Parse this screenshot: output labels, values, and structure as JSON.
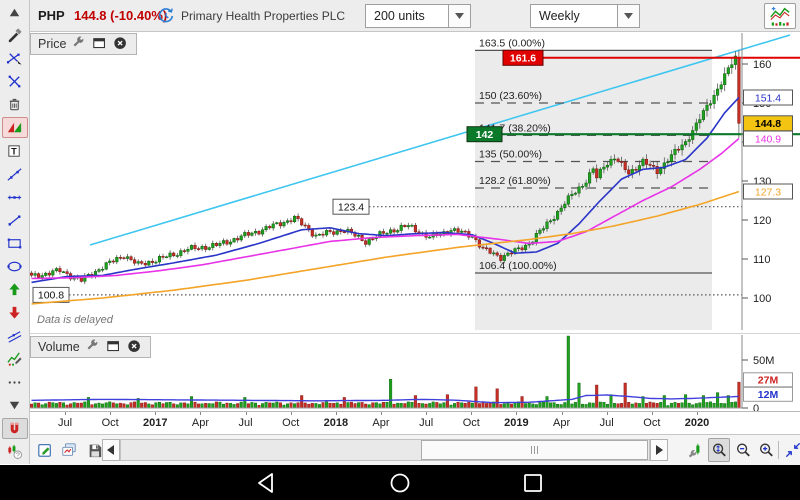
{
  "top_bar": {
    "symbol": "PHP",
    "quote": "144.8 (-10.40%)",
    "quote_color": "#c00000",
    "company": "Primary Health Properties PLC",
    "units": "200 units",
    "interval": "Weekly",
    "delayed_icon": "delayed-clock-icon",
    "chart_type_icon": "chart-style-icon"
  },
  "left_toolbar": {
    "tools": [
      {
        "name": "scroll-up"
      },
      {
        "name": "drawing-tools"
      },
      {
        "name": "trendline-draw"
      },
      {
        "name": "cross-line"
      },
      {
        "name": "delete"
      },
      {
        "name": "fib-retracement",
        "active": "red"
      },
      {
        "name": "text-tool"
      },
      {
        "name": "ray-line"
      },
      {
        "name": "horizontal-line"
      },
      {
        "name": "segment"
      },
      {
        "name": "rectangle"
      },
      {
        "name": "ellipse"
      },
      {
        "name": "arrow-up"
      },
      {
        "name": "arrow-down"
      },
      {
        "name": "channel"
      },
      {
        "name": "chart-annotation"
      },
      {
        "name": "more"
      },
      {
        "name": "scroll-down"
      },
      {
        "name": "magnet",
        "active": "gray"
      },
      {
        "name": "help-tool"
      }
    ]
  },
  "price_panel": {
    "title": "Price",
    "header_icons": [
      "wrench",
      "window",
      "close"
    ],
    "delayed_note": "Data is delayed"
  },
  "volume_panel": {
    "title": "Volume",
    "header_icons": [
      "wrench",
      "window",
      "close"
    ]
  },
  "bottom_toolbar": {
    "buttons": [
      "edit-annotations",
      "copy-chart",
      "save-chart",
      "scroll-left",
      "scroll-thumb",
      "scroll-right",
      "chart-settings",
      "zoom-area",
      "zoom-out",
      "zoom-in",
      "fit-chart"
    ],
    "active_button": "zoom-area"
  },
  "nav_bar": {
    "buttons": [
      "back",
      "home",
      "recents"
    ]
  },
  "chart_data": {
    "type": "candlestick",
    "weeks": 200,
    "colors": {
      "up": "#1fa11f",
      "up_stroke": "#0b5e0b",
      "down": "#c62f26",
      "down_stroke": "#7c150f",
      "wick": "#444"
    },
    "close_keyframes": [
      [
        0,
        105.5
      ],
      [
        8,
        107
      ],
      [
        14,
        104.5
      ],
      [
        20,
        108
      ],
      [
        26,
        111
      ],
      [
        30,
        108.5
      ],
      [
        36,
        110
      ],
      [
        44,
        112.5
      ],
      [
        52,
        113.5
      ],
      [
        60,
        116
      ],
      [
        68,
        118.5
      ],
      [
        74,
        120.5
      ],
      [
        80,
        116
      ],
      [
        88,
        117.5
      ],
      [
        94,
        114.5
      ],
      [
        100,
        117
      ],
      [
        106,
        118.5
      ],
      [
        112,
        115.5
      ],
      [
        118,
        117.5
      ],
      [
        124,
        116
      ],
      [
        127,
        112.5
      ],
      [
        132,
        110.5
      ],
      [
        136,
        112
      ],
      [
        140,
        114
      ],
      [
        144,
        118
      ],
      [
        148,
        122
      ],
      [
        152,
        126.5
      ],
      [
        156,
        130
      ],
      [
        158,
        133
      ],
      [
        159,
        130.8
      ],
      [
        161,
        134
      ],
      [
        164,
        136
      ],
      [
        168,
        132
      ],
      [
        172,
        135
      ],
      [
        176,
        132.5
      ],
      [
        180,
        136.5
      ],
      [
        184,
        140
      ],
      [
        188,
        146
      ],
      [
        192,
        152
      ],
      [
        195,
        157
      ],
      [
        198,
        161.6
      ],
      [
        199,
        161.6
      ]
    ],
    "last_candle": {
      "open": 161.6,
      "high": 163.5,
      "low": 141.0,
      "close": 144.8
    },
    "moving_averages": [
      {
        "name": "ma-fast",
        "color": "#2a35c8",
        "end_value": 151.4,
        "keyframes": [
          [
            0,
            104
          ],
          [
            10,
            105.5
          ],
          [
            20,
            105.8
          ],
          [
            30,
            107.5
          ],
          [
            40,
            109
          ],
          [
            52,
            111
          ],
          [
            64,
            114
          ],
          [
            76,
            117.5
          ],
          [
            84,
            118
          ],
          [
            92,
            116.5
          ],
          [
            100,
            116
          ],
          [
            108,
            116.5
          ],
          [
            116,
            116.8
          ],
          [
            124,
            116.2
          ],
          [
            130,
            114
          ],
          [
            136,
            111.5
          ],
          [
            142,
            111.8
          ],
          [
            148,
            114
          ],
          [
            154,
            119
          ],
          [
            160,
            125
          ],
          [
            166,
            130.5
          ],
          [
            172,
            133
          ],
          [
            178,
            133.5
          ],
          [
            184,
            135.5
          ],
          [
            190,
            141
          ],
          [
            195,
            147.5
          ],
          [
            199,
            151.4
          ]
        ]
      },
      {
        "name": "ma-mid",
        "color": "#e833e8",
        "end_value": 140.9,
        "keyframes": [
          [
            0,
            105
          ],
          [
            12,
            105.2
          ],
          [
            24,
            105.8
          ],
          [
            36,
            107
          ],
          [
            48,
            108.5
          ],
          [
            60,
            110.5
          ],
          [
            72,
            112.5
          ],
          [
            84,
            114.5
          ],
          [
            96,
            115.5
          ],
          [
            108,
            116
          ],
          [
            120,
            116.3
          ],
          [
            132,
            115
          ],
          [
            140,
            114
          ],
          [
            148,
            114.5
          ],
          [
            156,
            117
          ],
          [
            164,
            121
          ],
          [
            172,
            125
          ],
          [
            180,
            128.5
          ],
          [
            188,
            133
          ],
          [
            194,
            137
          ],
          [
            199,
            140.9
          ]
        ]
      },
      {
        "name": "ma-slow",
        "color": "#f4a428",
        "end_value": 127.3,
        "keyframes": [
          [
            0,
            98.5
          ],
          [
            20,
            100
          ],
          [
            40,
            102
          ],
          [
            60,
            104.5
          ],
          [
            80,
            107.5
          ],
          [
            100,
            110.5
          ],
          [
            120,
            113
          ],
          [
            140,
            115
          ],
          [
            152,
            116.5
          ],
          [
            164,
            118.5
          ],
          [
            176,
            121
          ],
          [
            188,
            124
          ],
          [
            199,
            127.3
          ]
        ]
      }
    ],
    "trendline": {
      "color": "#3fc6f0"
    },
    "fibonacci": {
      "levels": [
        {
          "label": "163.5 (0.00%)",
          "price": 163.5,
          "line": "solid"
        },
        {
          "label": "150 (23.60%)",
          "price": 150,
          "line": "dashed"
        },
        {
          "label": "141.7 (38.20%)",
          "price": 141.7,
          "line": "dashed"
        },
        {
          "label": "135 (50.00%)",
          "price": 135,
          "line": "dashed"
        },
        {
          "label": "128.2 (61.80%)",
          "price": 128.2,
          "line": "dashed"
        },
        {
          "label": "106.4 (100.00%)",
          "price": 106.4,
          "line": "solid"
        }
      ]
    },
    "annotations": {
      "alert_line": {
        "label": "161.6",
        "price": 161.6,
        "color": "#e00000"
      },
      "level_line": {
        "label": "142",
        "price": 142,
        "color": "#0a7a2a"
      },
      "dotted_lines": [
        {
          "label": "123.4",
          "price": 123.4,
          "box_x": 333
        },
        {
          "label": "100.8",
          "price": 100.8,
          "box_x": 33
        }
      ]
    },
    "y_ticks": [
      160,
      150,
      140,
      130,
      120,
      110,
      100
    ],
    "axis_boxes": [
      {
        "text": "151.4",
        "price": 151.4,
        "color": "#2a35c8",
        "bg": "#ffffff",
        "bold": false
      },
      {
        "text": "144.8",
        "price": 144.8,
        "color": "#000000",
        "bg": "#f3c512",
        "bold": true
      },
      {
        "text": "140.9",
        "price": 140.9,
        "color": "#e833e8",
        "bg": "#ffffff",
        "bold": false
      },
      {
        "text": "127.3",
        "price": 127.3,
        "color": "#f4a428",
        "bg": "#ffffff",
        "bold": false
      }
    ],
    "volume_ticks": [
      {
        "text": "50M",
        "v": 50
      },
      {
        "text": "0",
        "v": 0
      }
    ],
    "volume_boxes": [
      {
        "text": "27M",
        "color": "#cc2222"
      },
      {
        "text": "12M",
        "color": "#2233cc"
      }
    ],
    "volume_spikes": {
      "16": 11,
      "30": 10,
      "45": 12,
      "60": 11,
      "76": 13,
      "88": 11,
      "101": 30,
      "108": 13,
      "117": 14,
      "125": 22,
      "131": 20,
      "138": 12,
      "145": 12,
      "151": 75,
      "154": 26,
      "159": 24,
      "163": 14,
      "167": 26,
      "172": 12,
      "178": 13,
      "184": 14,
      "189": 13,
      "193": 16,
      "196": 13,
      "199": 27
    },
    "volume_ma": {
      "color": "#4040dd",
      "keyframes": [
        [
          0,
          8
        ],
        [
          20,
          9
        ],
        [
          40,
          8.5
        ],
        [
          60,
          8
        ],
        [
          80,
          7.5
        ],
        [
          100,
          8
        ],
        [
          110,
          9
        ],
        [
          120,
          8
        ],
        [
          130,
          5.5
        ],
        [
          140,
          6
        ],
        [
          152,
          9
        ],
        [
          156,
          13
        ],
        [
          162,
          13.5
        ],
        [
          168,
          12
        ],
        [
          174,
          10
        ],
        [
          180,
          9.5
        ],
        [
          186,
          10
        ],
        [
          192,
          11
        ],
        [
          199,
          12
        ]
      ]
    },
    "x_labels": [
      {
        "t": "Jul"
      },
      {
        "t": "Oct"
      },
      {
        "t": "2017",
        "b": true
      },
      {
        "t": "Apr"
      },
      {
        "t": "Jul"
      },
      {
        "t": "Oct"
      },
      {
        "t": "2018",
        "b": true
      },
      {
        "t": "Apr"
      },
      {
        "t": "Jul"
      },
      {
        "t": "Oct"
      },
      {
        "t": "2019",
        "b": true
      },
      {
        "t": "Apr"
      },
      {
        "t": "Jul"
      },
      {
        "t": "Oct"
      },
      {
        "t": "2020",
        "b": true
      }
    ]
  }
}
